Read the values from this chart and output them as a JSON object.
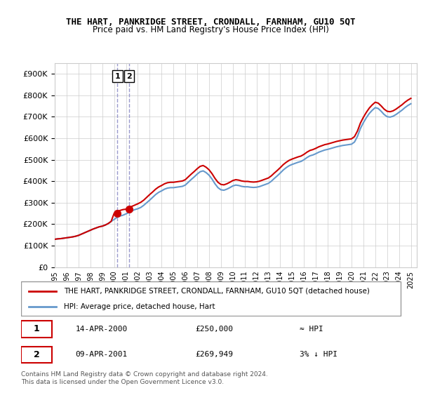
{
  "title": "THE HART, PANKRIDGE STREET, CRONDALL, FARNHAM, GU10 5QT",
  "subtitle": "Price paid vs. HM Land Registry's House Price Index (HPI)",
  "ylabel_ticks": [
    "£0",
    "£100K",
    "£200K",
    "£300K",
    "£400K",
    "£500K",
    "£600K",
    "£700K",
    "£800K",
    "£900K"
  ],
  "ytick_values": [
    0,
    100000,
    200000,
    300000,
    400000,
    500000,
    600000,
    700000,
    800000,
    900000
  ],
  "ylim": [
    0,
    950000
  ],
  "xlim_start": 1995.0,
  "xlim_end": 2025.5,
  "x_tick_labels": [
    "1995",
    "1996",
    "1997",
    "1998",
    "1999",
    "2000",
    "2001",
    "2002",
    "2003",
    "2004",
    "2005",
    "2006",
    "2007",
    "2008",
    "2009",
    "2010",
    "2011",
    "2012",
    "2013",
    "2014",
    "2015",
    "2016",
    "2017",
    "2018",
    "2019",
    "2020",
    "2021",
    "2022",
    "2023",
    "2024",
    "2025"
  ],
  "transaction1_x": 2000.29,
  "transaction1_y": 250000,
  "transaction1_label": "1",
  "transaction1_date": "14-APR-2000",
  "transaction1_price": "£250,000",
  "transaction1_hpi": "≈ HPI",
  "transaction2_x": 2001.27,
  "transaction2_y": 269949,
  "transaction2_label": "2",
  "transaction2_date": "09-APR-2001",
  "transaction2_price": "£269,949",
  "transaction2_hpi": "3% ↓ HPI",
  "vline1_x": 2000.29,
  "vline2_x": 2001.27,
  "hpi_line_color": "#6699cc",
  "price_line_color": "#cc0000",
  "marker_color": "#cc0000",
  "vline_color": "#9999cc",
  "grid_color": "#cccccc",
  "legend_label1": "THE HART, PANKRIDGE STREET, CRONDALL, FARNHAM, GU10 5QT (detached house)",
  "legend_label2": "HPI: Average price, detached house, Hart",
  "footnote": "Contains HM Land Registry data © Crown copyright and database right 2024.\nThis data is licensed under the Open Government Licence v3.0.",
  "hpi_data_x": [
    1995.0,
    1995.25,
    1995.5,
    1995.75,
    1996.0,
    1996.25,
    1996.5,
    1996.75,
    1997.0,
    1997.25,
    1997.5,
    1997.75,
    1998.0,
    1998.25,
    1998.5,
    1998.75,
    1999.0,
    1999.25,
    1999.5,
    1999.75,
    2000.0,
    2000.25,
    2000.5,
    2000.75,
    2001.0,
    2001.25,
    2001.5,
    2001.75,
    2002.0,
    2002.25,
    2002.5,
    2002.75,
    2003.0,
    2003.25,
    2003.5,
    2003.75,
    2004.0,
    2004.25,
    2004.5,
    2004.75,
    2005.0,
    2005.25,
    2005.5,
    2005.75,
    2006.0,
    2006.25,
    2006.5,
    2006.75,
    2007.0,
    2007.25,
    2007.5,
    2007.75,
    2008.0,
    2008.25,
    2008.5,
    2008.75,
    2009.0,
    2009.25,
    2009.5,
    2009.75,
    2010.0,
    2010.25,
    2010.5,
    2010.75,
    2011.0,
    2011.25,
    2011.5,
    2011.75,
    2012.0,
    2012.25,
    2012.5,
    2012.75,
    2013.0,
    2013.25,
    2013.5,
    2013.75,
    2014.0,
    2014.25,
    2014.5,
    2014.75,
    2015.0,
    2015.25,
    2015.5,
    2015.75,
    2016.0,
    2016.25,
    2016.5,
    2016.75,
    2017.0,
    2017.25,
    2017.5,
    2017.75,
    2018.0,
    2018.25,
    2018.5,
    2018.75,
    2019.0,
    2019.25,
    2019.5,
    2019.75,
    2020.0,
    2020.25,
    2020.5,
    2020.75,
    2021.0,
    2021.25,
    2021.5,
    2021.75,
    2022.0,
    2022.25,
    2022.5,
    2022.75,
    2023.0,
    2023.25,
    2023.5,
    2023.75,
    2024.0,
    2024.25,
    2024.5,
    2024.75,
    2025.0
  ],
  "hpi_data_y": [
    130000,
    132000,
    133000,
    135000,
    137000,
    139000,
    141000,
    144000,
    148000,
    154000,
    160000,
    166000,
    172000,
    178000,
    183000,
    188000,
    191000,
    196000,
    203000,
    213000,
    222000,
    232000,
    238000,
    242000,
    248000,
    255000,
    262000,
    268000,
    272000,
    278000,
    288000,
    300000,
    312000,
    325000,
    338000,
    348000,
    355000,
    363000,
    368000,
    370000,
    370000,
    372000,
    374000,
    376000,
    382000,
    395000,
    408000,
    420000,
    433000,
    444000,
    448000,
    440000,
    428000,
    410000,
    388000,
    370000,
    360000,
    358000,
    363000,
    370000,
    378000,
    382000,
    380000,
    376000,
    374000,
    374000,
    372000,
    371000,
    372000,
    375000,
    380000,
    385000,
    390000,
    400000,
    413000,
    425000,
    438000,
    452000,
    463000,
    472000,
    478000,
    483000,
    488000,
    492000,
    500000,
    510000,
    518000,
    522000,
    528000,
    535000,
    540000,
    545000,
    548000,
    552000,
    556000,
    560000,
    563000,
    566000,
    568000,
    570000,
    572000,
    582000,
    608000,
    645000,
    672000,
    695000,
    715000,
    730000,
    742000,
    738000,
    725000,
    710000,
    700000,
    698000,
    702000,
    710000,
    720000,
    730000,
    742000,
    752000,
    760000
  ],
  "price_data_x": [
    1995.0,
    1995.25,
    1995.5,
    1995.75,
    1996.0,
    1996.25,
    1996.5,
    1996.75,
    1997.0,
    1997.25,
    1997.5,
    1997.75,
    1998.0,
    1998.25,
    1998.5,
    1998.75,
    1999.0,
    1999.25,
    1999.5,
    1999.75,
    2000.0,
    2000.25,
    2000.5,
    2000.75,
    2001.0,
    2001.25,
    2001.5,
    2001.75,
    2002.0,
    2002.25,
    2002.5,
    2002.75,
    2003.0,
    2003.25,
    2003.5,
    2003.75,
    2004.0,
    2004.25,
    2004.5,
    2004.75,
    2005.0,
    2005.25,
    2005.5,
    2005.75,
    2006.0,
    2006.25,
    2006.5,
    2006.75,
    2007.0,
    2007.25,
    2007.5,
    2007.75,
    2008.0,
    2008.25,
    2008.5,
    2008.75,
    2009.0,
    2009.25,
    2009.5,
    2009.75,
    2010.0,
    2010.25,
    2010.5,
    2010.75,
    2011.0,
    2011.25,
    2011.5,
    2011.75,
    2012.0,
    2012.25,
    2012.5,
    2012.75,
    2013.0,
    2013.25,
    2013.5,
    2013.75,
    2014.0,
    2014.25,
    2014.5,
    2014.75,
    2015.0,
    2015.25,
    2015.5,
    2015.75,
    2016.0,
    2016.25,
    2016.5,
    2016.75,
    2017.0,
    2017.25,
    2017.5,
    2017.75,
    2018.0,
    2018.25,
    2018.5,
    2018.75,
    2019.0,
    2019.25,
    2019.5,
    2019.75,
    2020.0,
    2020.25,
    2020.5,
    2020.75,
    2021.0,
    2021.25,
    2021.5,
    2021.75,
    2022.0,
    2022.25,
    2022.5,
    2022.75,
    2023.0,
    2023.25,
    2023.5,
    2023.75,
    2024.0,
    2024.25,
    2024.5,
    2024.75,
    2025.0
  ],
  "price_data_y": [
    130000,
    132000,
    133000,
    135000,
    137000,
    139000,
    141000,
    144000,
    148000,
    154000,
    160000,
    166000,
    172000,
    178000,
    183000,
    188000,
    191000,
    196000,
    203000,
    213000,
    250000,
    258000,
    264000,
    268000,
    269949,
    276000,
    283000,
    289000,
    295000,
    302000,
    312000,
    325000,
    338000,
    350000,
    363000,
    373000,
    380000,
    388000,
    393000,
    395000,
    395000,
    397000,
    399000,
    401000,
    407000,
    420000,
    433000,
    445000,
    458000,
    469000,
    473000,
    465000,
    453000,
    435000,
    413000,
    395000,
    385000,
    383000,
    388000,
    395000,
    403000,
    407000,
    405000,
    401000,
    399000,
    399000,
    397000,
    396000,
    397000,
    400000,
    405000,
    410000,
    415000,
    425000,
    438000,
    450000,
    463000,
    477000,
    488000,
    497000,
    503000,
    508000,
    513000,
    517000,
    525000,
    535000,
    543000,
    547000,
    553000,
    560000,
    565000,
    570000,
    573000,
    577000,
    581000,
    585000,
    588000,
    591000,
    593000,
    595000,
    597000,
    607000,
    633000,
    670000,
    697000,
    720000,
    740000,
    755000,
    767000,
    763000,
    750000,
    735000,
    725000,
    723000,
    727000,
    735000,
    745000,
    755000,
    767000,
    777000,
    785000
  ]
}
